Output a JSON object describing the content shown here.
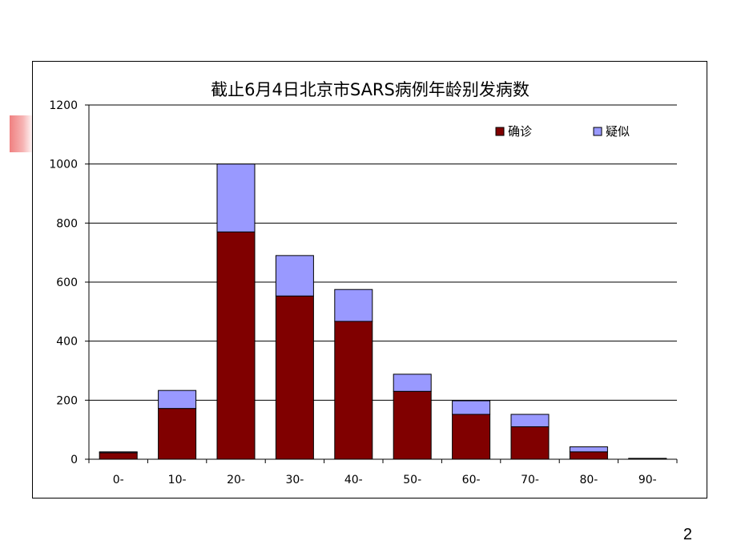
{
  "slide": {
    "page_number": "2",
    "accent_color": "#f08080"
  },
  "chart_data": {
    "type": "bar",
    "stacked": true,
    "title": "截止6月4日北京市SARS病例年龄别发病数",
    "xlabel": "",
    "ylabel": "",
    "categories": [
      "0-",
      "10-",
      "20-",
      "30-",
      "40-",
      "50-",
      "60-",
      "70-",
      "80-",
      "90-"
    ],
    "series": [
      {
        "name": "确诊",
        "color": "#800000",
        "values": [
          22,
          172,
          770,
          553,
          467,
          230,
          152,
          110,
          25,
          2
        ]
      },
      {
        "name": "疑似",
        "color": "#9999ff",
        "values": [
          3,
          61,
          230,
          137,
          108,
          58,
          46,
          42,
          17,
          1
        ]
      }
    ],
    "ylim": [
      0,
      1200
    ],
    "yticks": [
      0,
      200,
      400,
      600,
      800,
      1000,
      1200
    ],
    "grid": true,
    "legend_position": "top-right"
  }
}
